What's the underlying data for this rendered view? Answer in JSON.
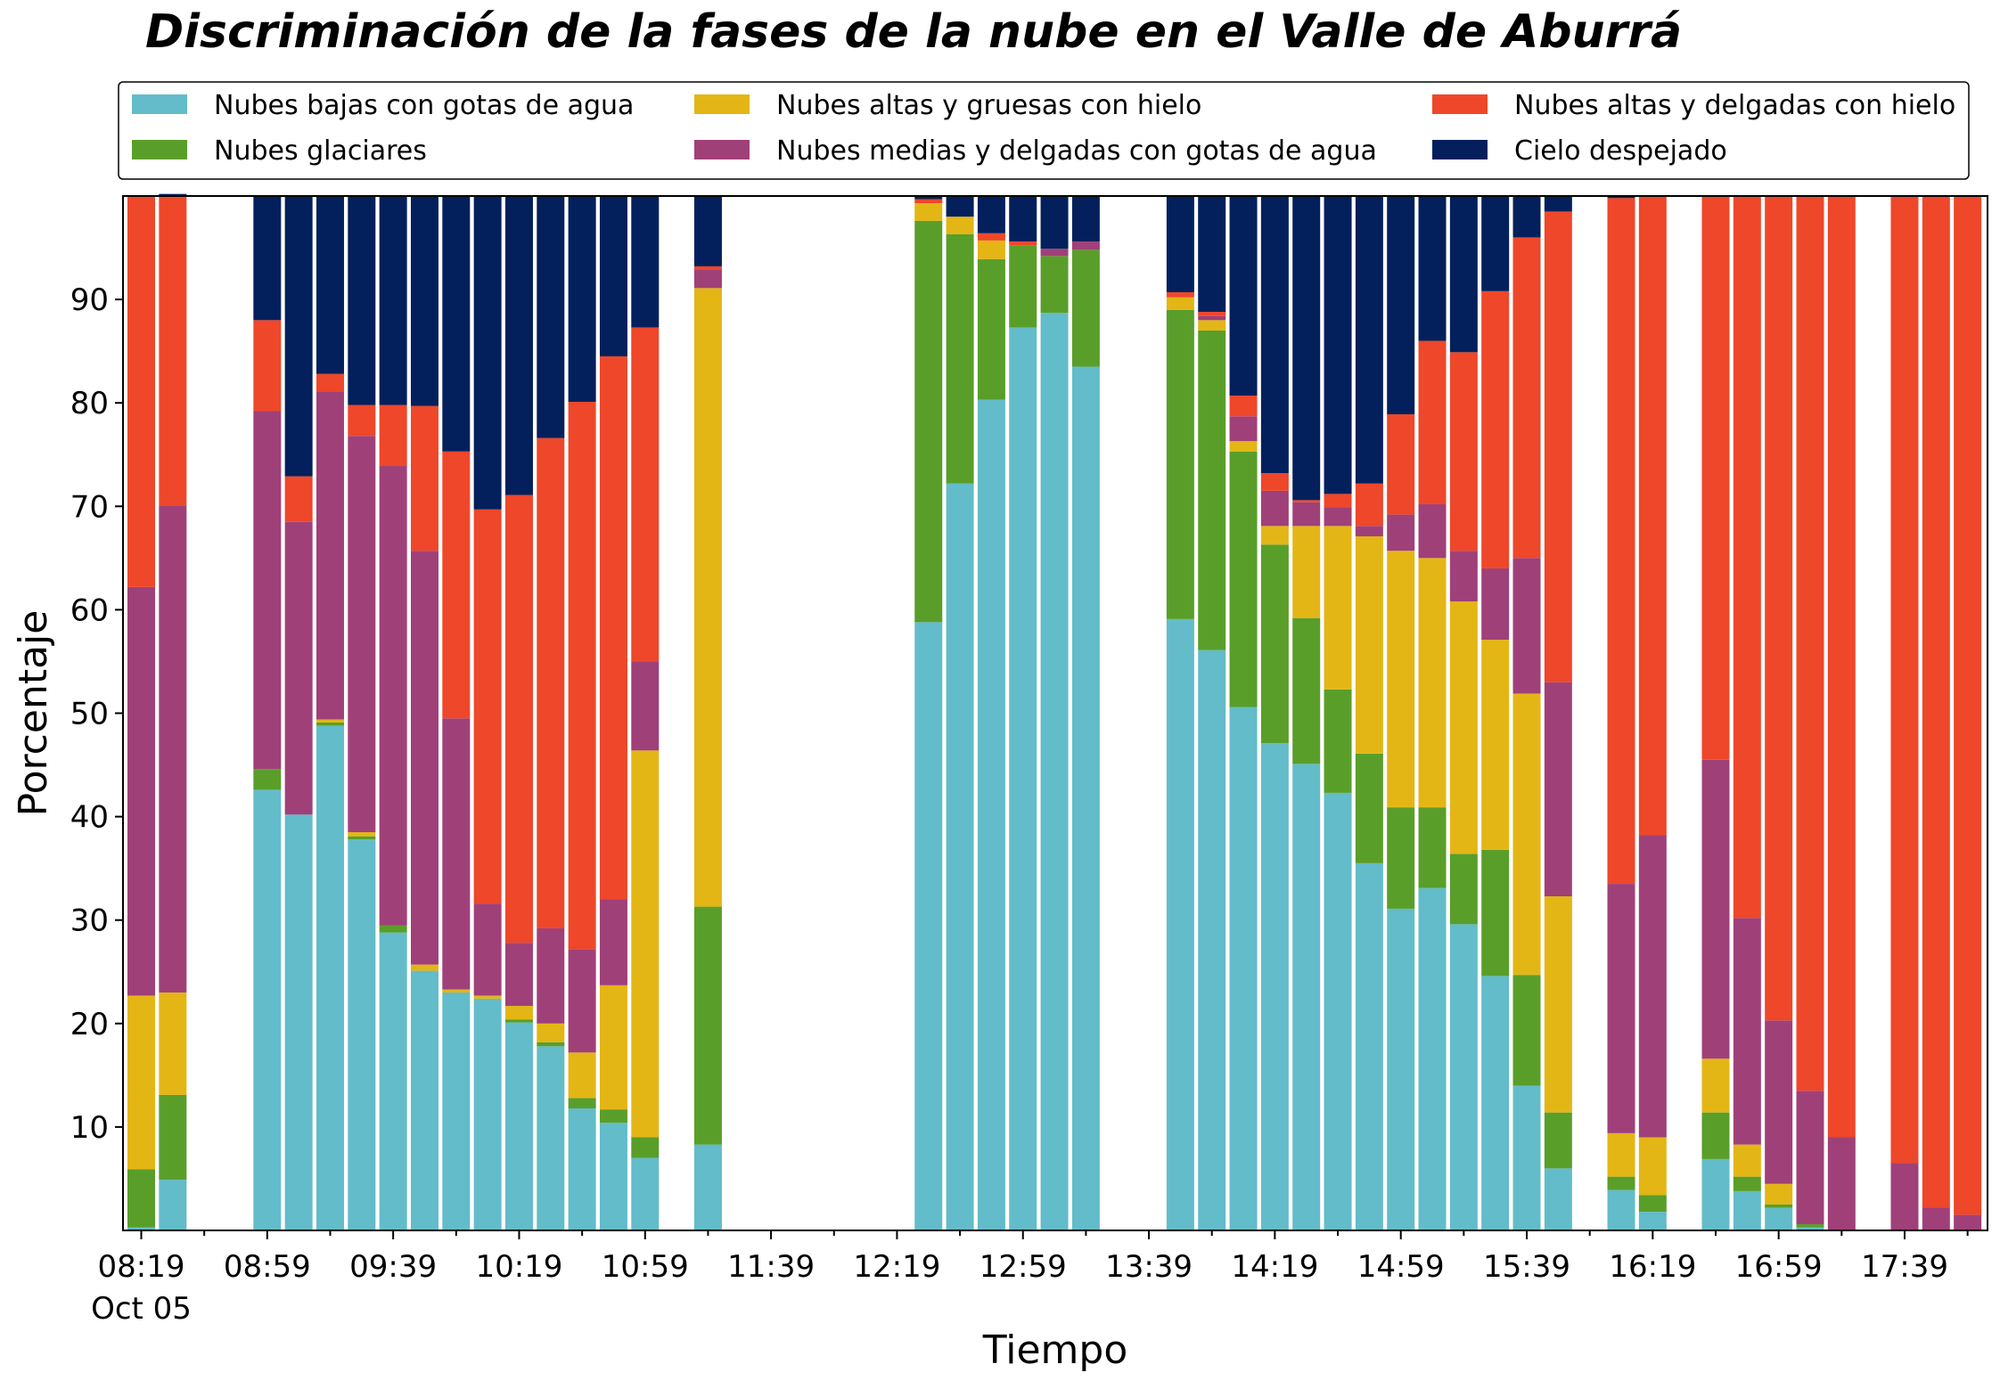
{
  "chart_data": {
    "type": "bar",
    "stacked": true,
    "title": "Discriminación de la fases de la nube en el Valle de Aburrá",
    "xlabel": "Tiempo",
    "ylabel": "Porcentaje",
    "ylim": [
      0,
      100
    ],
    "yticks": [
      10,
      20,
      30,
      40,
      50,
      60,
      70,
      80,
      90
    ],
    "xticks": [
      {
        "label": "08:19",
        "sublabel": "Oct 05",
        "slot": 0
      },
      {
        "label": "08:59",
        "slot": 4
      },
      {
        "label": "09:39",
        "slot": 8
      },
      {
        "label": "10:19",
        "slot": 12
      },
      {
        "label": "10:59",
        "slot": 16
      },
      {
        "label": "11:39",
        "slot": 20
      },
      {
        "label": "12:19",
        "slot": 24
      },
      {
        "label": "12:59",
        "slot": 28
      },
      {
        "label": "13:39",
        "slot": 32
      },
      {
        "label": "14:19",
        "slot": 36
      },
      {
        "label": "14:59",
        "slot": 40
      },
      {
        "label": "15:39",
        "slot": 44
      },
      {
        "label": "16:19",
        "slot": 48
      },
      {
        "label": "16:59",
        "slot": 52
      },
      {
        "label": "17:39",
        "slot": 56
      }
    ],
    "grid": false,
    "legend_position": "top",
    "series": [
      {
        "name": "Nubes bajas con gotas de agua",
        "color": "#63BCC9"
      },
      {
        "name": "Nubes glaciares",
        "color": "#5A9E2A"
      },
      {
        "name": "Nubes altas y gruesas con hielo",
        "color": "#E3B616"
      },
      {
        "name": "Nubes medias y delgadas con gotas de agua",
        "color": "#A04079"
      },
      {
        "name": "Nubes altas y delgadas con hielo",
        "color": "#EE472A"
      },
      {
        "name": "Cielo despejado",
        "color": "#03205C"
      }
    ],
    "bars": [
      {
        "slot": 0,
        "values": [
          0.3,
          5.6,
          16.8,
          39.5,
          37.8,
          0
        ]
      },
      {
        "slot": 1,
        "values": [
          4.9,
          8.2,
          9.9,
          47.1,
          29.8,
          0.3
        ]
      },
      {
        "slot": 4,
        "values": [
          42.6,
          2.0,
          0,
          34.6,
          8.8,
          12.0
        ]
      },
      {
        "slot": 5,
        "values": [
          40.2,
          0,
          0,
          28.3,
          4.4,
          27.1
        ]
      },
      {
        "slot": 6,
        "values": [
          48.8,
          0.3,
          0.3,
          31.7,
          1.7,
          17.2
        ]
      },
      {
        "slot": 7,
        "values": [
          37.8,
          0.3,
          0.4,
          38.3,
          3.0,
          20.2
        ]
      },
      {
        "slot": 8,
        "values": [
          28.8,
          0.7,
          0,
          44.4,
          5.9,
          20.2
        ]
      },
      {
        "slot": 9,
        "values": [
          25.1,
          0,
          0.6,
          40.0,
          14.0,
          20.3
        ]
      },
      {
        "slot": 10,
        "values": [
          23.0,
          0,
          0.3,
          26.2,
          25.8,
          24.7
        ]
      },
      {
        "slot": 11,
        "values": [
          22.4,
          0,
          0.3,
          8.9,
          38.1,
          30.3
        ]
      },
      {
        "slot": 12,
        "values": [
          20.1,
          0.3,
          1.3,
          6.1,
          43.3,
          28.9
        ]
      },
      {
        "slot": 13,
        "values": [
          17.8,
          0.4,
          1.8,
          9.2,
          47.4,
          23.4
        ]
      },
      {
        "slot": 14,
        "values": [
          11.8,
          1.0,
          4.4,
          10.0,
          52.9,
          19.9
        ]
      },
      {
        "slot": 15,
        "values": [
          10.4,
          1.3,
          12.0,
          8.3,
          52.5,
          15.5
        ]
      },
      {
        "slot": 16,
        "values": [
          7.0,
          2.0,
          37.4,
          8.6,
          32.3,
          12.7
        ]
      },
      {
        "slot": 18,
        "values": [
          8.3,
          23.0,
          59.8,
          1.8,
          0.3,
          6.8
        ]
      },
      {
        "slot": 25,
        "values": [
          58.8,
          38.8,
          1.7,
          0,
          0.4,
          0.3
        ]
      },
      {
        "slot": 26,
        "values": [
          72.2,
          24.1,
          1.7,
          0,
          0,
          2.0
        ]
      },
      {
        "slot": 27,
        "values": [
          80.3,
          13.6,
          1.8,
          0,
          0.7,
          3.6
        ]
      },
      {
        "slot": 28,
        "values": [
          87.3,
          7.9,
          0,
          0,
          0.4,
          4.4
        ]
      },
      {
        "slot": 29,
        "values": [
          88.7,
          5.5,
          0,
          0.7,
          0,
          5.1
        ]
      },
      {
        "slot": 30,
        "values": [
          83.5,
          11.3,
          0,
          0.8,
          0,
          4.4
        ]
      },
      {
        "slot": 33,
        "values": [
          59.1,
          29.9,
          1.2,
          0,
          0.5,
          9.3
        ]
      },
      {
        "slot": 34,
        "values": [
          56.1,
          30.9,
          1.0,
          0.4,
          0.4,
          11.2
        ]
      },
      {
        "slot": 35,
        "values": [
          50.6,
          24.7,
          1.0,
          2.4,
          2.0,
          19.3
        ]
      },
      {
        "slot": 36,
        "values": [
          47.1,
          19.2,
          1.8,
          3.4,
          1.7,
          26.8
        ]
      },
      {
        "slot": 37,
        "values": [
          45.1,
          14.1,
          8.9,
          2.3,
          0.2,
          29.4
        ]
      },
      {
        "slot": 38,
        "values": [
          42.3,
          10.0,
          15.8,
          1.8,
          1.3,
          28.8
        ]
      },
      {
        "slot": 39,
        "values": [
          35.5,
          10.6,
          21.0,
          1.0,
          4.1,
          27.8
        ]
      },
      {
        "slot": 40,
        "values": [
          31.1,
          9.8,
          24.8,
          3.5,
          9.7,
          21.1
        ]
      },
      {
        "slot": 41,
        "values": [
          33.1,
          7.8,
          24.1,
          5.2,
          15.8,
          14.0
        ]
      },
      {
        "slot": 42,
        "values": [
          29.6,
          6.8,
          24.4,
          4.9,
          19.2,
          15.1
        ]
      },
      {
        "slot": 43,
        "values": [
          24.6,
          12.2,
          20.3,
          6.9,
          26.8,
          9.2
        ]
      },
      {
        "slot": 44,
        "values": [
          14.0,
          10.7,
          27.2,
          13.1,
          31.0,
          4.0
        ]
      },
      {
        "slot": 45,
        "values": [
          6.0,
          5.4,
          20.9,
          20.7,
          45.5,
          1.5
        ]
      },
      {
        "slot": 47,
        "values": [
          3.9,
          1.3,
          4.2,
          24.1,
          66.3,
          0.2
        ]
      },
      {
        "slot": 48,
        "values": [
          1.8,
          1.6,
          5.6,
          29.2,
          61.8,
          0
        ]
      },
      {
        "slot": 50,
        "values": [
          6.9,
          4.5,
          5.2,
          28.9,
          54.5,
          0
        ]
      },
      {
        "slot": 51,
        "values": [
          3.8,
          1.4,
          3.1,
          21.9,
          69.8,
          0
        ]
      },
      {
        "slot": 52,
        "values": [
          2.2,
          0.3,
          2.0,
          15.8,
          79.7,
          0
        ]
      },
      {
        "slot": 53,
        "values": [
          0.3,
          0.3,
          0,
          12.9,
          86.5,
          0
        ]
      },
      {
        "slot": 54,
        "values": [
          0,
          0,
          0,
          9.0,
          91.0,
          0
        ]
      },
      {
        "slot": 56,
        "values": [
          0,
          0,
          0,
          6.5,
          93.5,
          0
        ]
      },
      {
        "slot": 57,
        "values": [
          0,
          0,
          0,
          2.2,
          97.8,
          0
        ]
      },
      {
        "slot": 58,
        "values": [
          0,
          0,
          0,
          1.5,
          98.5,
          0
        ]
      }
    ]
  }
}
